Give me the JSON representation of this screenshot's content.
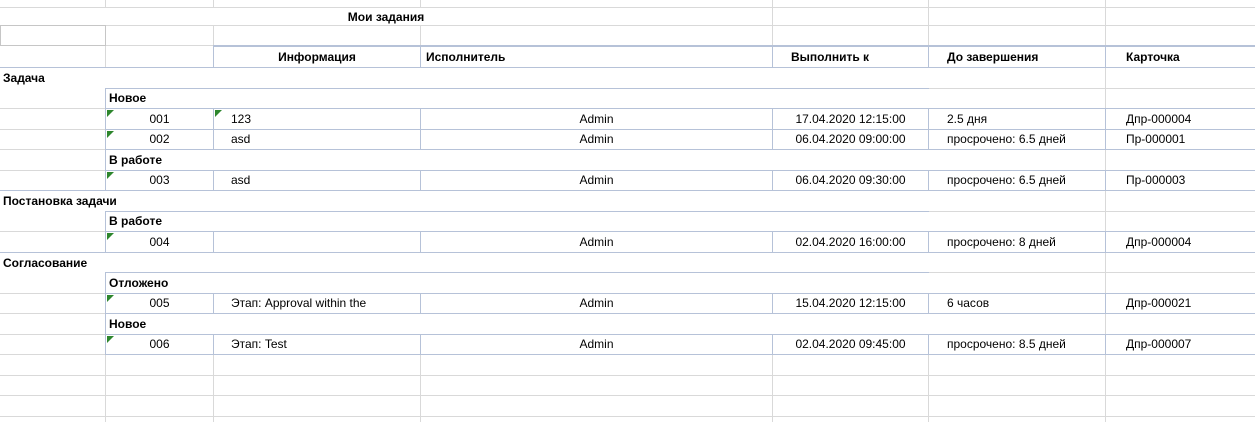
{
  "report": {
    "title": "Мои задания"
  },
  "table": {
    "headers": {
      "info": "Информация",
      "executor": "Исполнитель",
      "due": "Выполнить к",
      "remaining": "До завершения",
      "card": "Карточка"
    }
  },
  "sections": [
    {
      "title": "Задача",
      "groups": [
        {
          "status": "Новое",
          "tasks": [
            {
              "num": "001",
              "info": "123",
              "info_has_flag": true,
              "executor": "Admin",
              "due": "17.04.2020 12:15:00",
              "remaining": "2.5 дня",
              "card": "Дпр-000004"
            },
            {
              "num": "002",
              "info": "asd",
              "info_has_flag": false,
              "executor": "Admin",
              "due": "06.04.2020 09:00:00",
              "remaining": "просрочено: 6.5 дней",
              "card": "Пр-000001"
            }
          ]
        },
        {
          "status": "В работе",
          "tasks": [
            {
              "num": "003",
              "info": "asd",
              "info_has_flag": false,
              "executor": "Admin",
              "due": "06.04.2020 09:30:00",
              "remaining": "просрочено: 6.5 дней",
              "card": "Пр-000003"
            }
          ]
        }
      ]
    },
    {
      "title": "Постановка задачи",
      "groups": [
        {
          "status": "В работе",
          "tasks": [
            {
              "num": "004",
              "info": "",
              "info_has_flag": false,
              "executor": "Admin",
              "due": "02.04.2020 16:00:00",
              "remaining": "просрочено: 8 дней",
              "card": "Дпр-000004"
            }
          ]
        }
      ]
    },
    {
      "title": "Согласование",
      "groups": [
        {
          "status": "Отложено",
          "tasks": [
            {
              "num": "005",
              "info": "Этап: Approval within the",
              "info_has_flag": false,
              "executor": "Admin",
              "due": "15.04.2020 12:15:00",
              "remaining": "6 часов",
              "card": "Дпр-000021"
            }
          ]
        },
        {
          "status": "Новое",
          "tasks": [
            {
              "num": "006",
              "info": "Этап: Test",
              "info_has_flag": false,
              "executor": "Admin",
              "due": "02.04.2020 09:45:00",
              "remaining": "просрочено: 8.5 дней",
              "card": "Дпр-000007"
            }
          ]
        }
      ]
    }
  ],
  "icons": {
    "corner_flag": "number-stored-as-text-flag"
  },
  "colors": {
    "cell_border": "#b6c2d8",
    "gridline": "#d9d9d9",
    "box_border": "#c6c6c6",
    "flag_green": "#2d862d",
    "text": "#000000",
    "background": "#ffffff"
  }
}
